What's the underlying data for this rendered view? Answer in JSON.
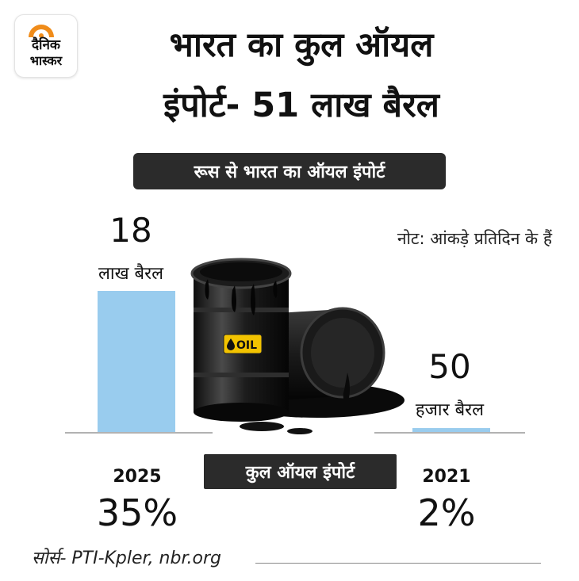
{
  "logo": {
    "line1": "दैनिक",
    "line2": "भास्कर"
  },
  "title": {
    "line1": "भारत का कुल ऑयल",
    "line2": "इंपोर्ट- 51 लाख बैरल"
  },
  "subtitle": "रूस से भारत का ऑयल इंपोर्ट",
  "note": "नोट: आंकड़े प्रतिदिन के हैं",
  "chart_data": {
    "type": "bar",
    "title": "रूस से भारत का ऑयल इंपोर्ट",
    "categories": [
      "2025",
      "2021"
    ],
    "values_barrels_per_day": [
      1800000,
      50000
    ],
    "value_labels": [
      {
        "number": "18",
        "unit": "लाख बैरल"
      },
      {
        "number": "50",
        "unit": "हजार बैरल"
      }
    ],
    "share_of_total_import": [
      "35%",
      "2%"
    ],
    "share_label": "कुल ऑयल इंपोर्ट",
    "bar_color": "#99ccee"
  },
  "source": "सोर्स- PTI-Kpler, nbr.org",
  "colors": {
    "bar": "#99ccee",
    "dark_pill": "#2b2b2b",
    "logo_mark": "#f08c1a"
  },
  "illustration": {
    "barrel_label": "OIL"
  }
}
